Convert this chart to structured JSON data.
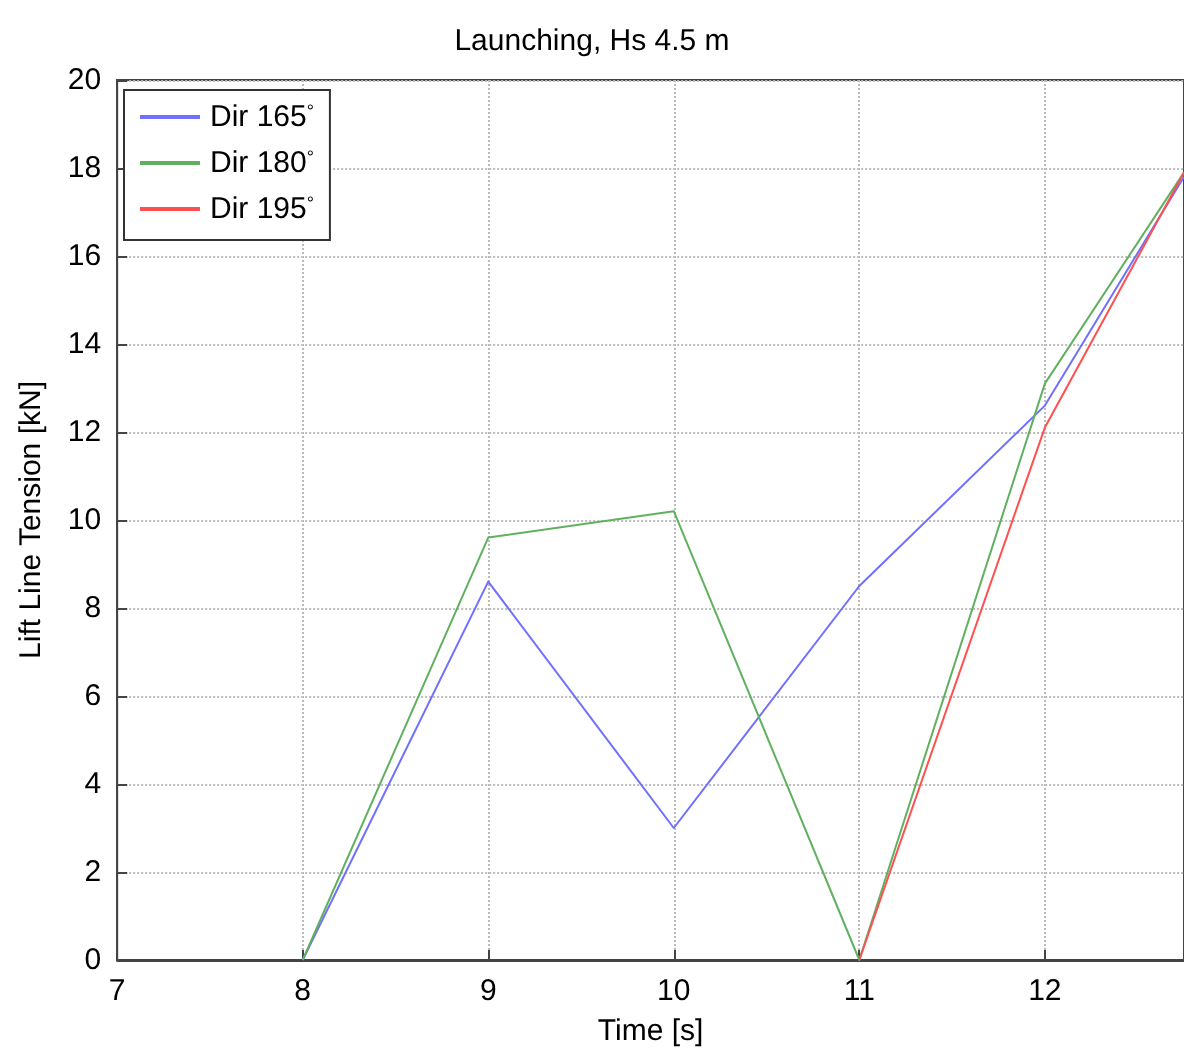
{
  "chart_data": {
    "type": "line",
    "title": "Launching, Hs 4.5 m",
    "xlabel": "Time [s]",
    "ylabel": "Lift Line Tension [kN]",
    "x": [
      8,
      9,
      10,
      11,
      12,
      12.75
    ],
    "series": [
      {
        "name": "Dir 165$^{°}$",
        "color": "#7070ff",
        "values": [
          0,
          8.6,
          3.0,
          8.5,
          12.6,
          17.8
        ]
      },
      {
        "name": "Dir 180$^{°}$",
        "color": "#60b060",
        "values": [
          0,
          9.6,
          10.2,
          0,
          13.1,
          17.9
        ]
      },
      {
        "name": "Dir 195$^{°}$",
        "color": "#ff5050",
        "values": [
          null,
          null,
          null,
          0,
          12.1,
          17.9
        ]
      }
    ],
    "xlim": [
      7,
      12.75
    ],
    "xticks": [
      7,
      8,
      9,
      10,
      11,
      12
    ],
    "ylim": [
      0,
      20
    ],
    "yticks": [
      0,
      2,
      4,
      6,
      8,
      10,
      12,
      14,
      16,
      18,
      20
    ],
    "grid": true,
    "legend": "top left",
    "marker": "none",
    "line_style": "solid"
  }
}
